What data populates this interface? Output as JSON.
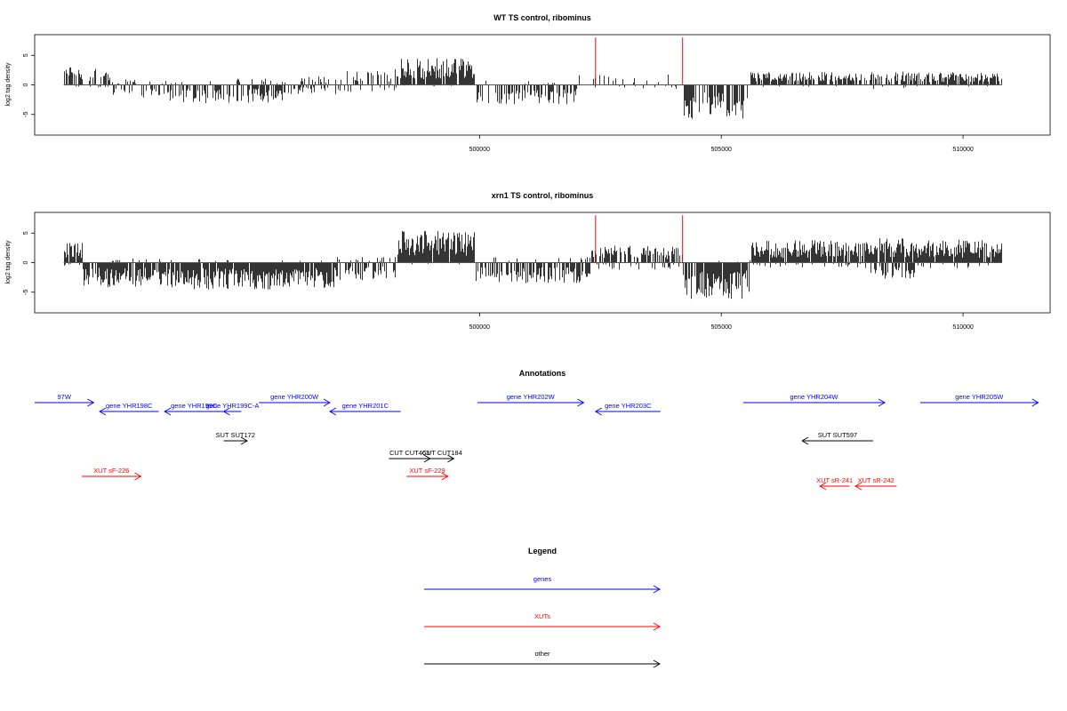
{
  "chart_data": [
    {
      "type": "bar",
      "title": "WT TS control, ribominus",
      "xlabel": "",
      "ylabel": "log2 tag density",
      "xlim": [
        490800,
        511800
      ],
      "ylim": [
        -8.5,
        8.5
      ],
      "x_ticks": [
        500000,
        505000,
        510000
      ],
      "x_tick_labels": [
        "500000",
        "505000",
        "510000"
      ],
      "y_ticks": [
        5,
        0,
        -5
      ],
      "y_tick_labels": [
        "5",
        "0",
        "-5"
      ],
      "grid": false,
      "markers": [
        {
          "x": 502400,
          "y": 8,
          "color": "#ff0000"
        },
        {
          "x": 504200,
          "y": 8,
          "color": "#ff0000"
        }
      ],
      "regions": [
        {
          "from": 491400,
          "to": 492400,
          "plus": 2.5,
          "minus": 0.3,
          "pdens": 0.6,
          "mdens": 0.15
        },
        {
          "from": 492400,
          "to": 493600,
          "plus": 0.8,
          "minus": 1.8,
          "pdens": 0.2,
          "mdens": 0.35
        },
        {
          "from": 493600,
          "to": 496200,
          "plus": 1.0,
          "minus": 2.6,
          "pdens": 0.1,
          "mdens": 0.5
        },
        {
          "from": 496200,
          "to": 497200,
          "plus": 1.2,
          "minus": 1.5,
          "pdens": 0.25,
          "mdens": 0.3
        },
        {
          "from": 497200,
          "to": 498300,
          "plus": 2.2,
          "minus": 1.0,
          "pdens": 0.4,
          "mdens": 0.2
        },
        {
          "from": 498300,
          "to": 499900,
          "plus": 3.8,
          "minus": 0.2,
          "pdens": 0.9,
          "mdens": 0.05
        },
        {
          "from": 499900,
          "to": 502000,
          "plus": 0.6,
          "minus": 2.8,
          "pdens": 0.1,
          "mdens": 0.5
        },
        {
          "from": 502000,
          "to": 504200,
          "plus": 1.5,
          "minus": 0.6,
          "pdens": 0.2,
          "mdens": 0.1
        },
        {
          "from": 504200,
          "to": 505600,
          "plus": 0.3,
          "minus": 4.8,
          "pdens": 0.05,
          "mdens": 0.75
        },
        {
          "from": 505600,
          "to": 508000,
          "plus": 1.8,
          "minus": 0.3,
          "pdens": 0.7,
          "mdens": 0.05
        },
        {
          "from": 508000,
          "to": 508800,
          "plus": 2.0,
          "minus": 1.0,
          "pdens": 0.6,
          "mdens": 0.2
        },
        {
          "from": 508800,
          "to": 510800,
          "plus": 1.8,
          "minus": 0.3,
          "pdens": 0.75,
          "mdens": 0.05
        }
      ]
    },
    {
      "type": "bar",
      "title": "xrn1 TS control, ribominus",
      "xlabel": "",
      "ylabel": "log2 tag density",
      "xlim": [
        490800,
        511800
      ],
      "ylim": [
        -8.5,
        8.5
      ],
      "x_ticks": [
        500000,
        505000,
        510000
      ],
      "x_tick_labels": [
        "500000",
        "505000",
        "510000"
      ],
      "y_ticks": [
        5,
        0,
        -5
      ],
      "y_tick_labels": [
        "5",
        "0",
        "-5"
      ],
      "grid": false,
      "markers": [
        {
          "x": 502400,
          "y": 8,
          "color": "#ff0000"
        },
        {
          "x": 504200,
          "y": 8,
          "color": "#ff0000"
        }
      ],
      "regions": [
        {
          "from": 491400,
          "to": 491800,
          "plus": 2.8,
          "minus": 0.5,
          "pdens": 0.9,
          "mdens": 0.2
        },
        {
          "from": 491800,
          "to": 494000,
          "plus": 0.6,
          "minus": 3.5,
          "pdens": 0.1,
          "mdens": 0.85
        },
        {
          "from": 494000,
          "to": 497000,
          "plus": 0.5,
          "minus": 3.8,
          "pdens": 0.05,
          "mdens": 0.95
        },
        {
          "from": 497000,
          "to": 498300,
          "plus": 1.0,
          "minus": 2.5,
          "pdens": 0.25,
          "mdens": 0.5
        },
        {
          "from": 498300,
          "to": 499900,
          "plus": 4.5,
          "minus": 0.3,
          "pdens": 0.95,
          "mdens": 0.05
        },
        {
          "from": 499900,
          "to": 502300,
          "plus": 0.8,
          "minus": 3.0,
          "pdens": 0.1,
          "mdens": 0.6
        },
        {
          "from": 502300,
          "to": 504200,
          "plus": 2.4,
          "minus": 1.0,
          "pdens": 0.6,
          "mdens": 0.2
        },
        {
          "from": 504200,
          "to": 505600,
          "plus": 0.5,
          "minus": 5.2,
          "pdens": 0.05,
          "mdens": 0.85
        },
        {
          "from": 505600,
          "to": 508000,
          "plus": 3.2,
          "minus": 0.8,
          "pdens": 0.95,
          "mdens": 0.15
        },
        {
          "from": 508000,
          "to": 509000,
          "plus": 3.5,
          "minus": 2.5,
          "pdens": 0.9,
          "mdens": 0.5
        },
        {
          "from": 509000,
          "to": 510800,
          "plus": 3.2,
          "minus": 0.8,
          "pdens": 0.95,
          "mdens": 0.15
        }
      ]
    }
  ],
  "annotations": {
    "title": "Annotations",
    "colors": {
      "gene": "#0000ff",
      "xut": "#ff0000",
      "other": "#000000"
    },
    "features": [
      {
        "label": "97W",
        "start": 490800,
        "end": 491800,
        "strand": "+",
        "kind": "gene",
        "row": 0
      },
      {
        "label": "gene YHR198C",
        "start": 491900,
        "end": 492900,
        "strand": "-",
        "kind": "gene",
        "row": 1
      },
      {
        "label": "gene YHR199C",
        "start": 493000,
        "end": 494000,
        "strand": "-",
        "kind": "gene",
        "row": 1
      },
      {
        "label": "gene YHR199C-A",
        "start": 494000,
        "end": 494300,
        "strand": "-",
        "kind": "gene",
        "row": 1
      },
      {
        "label": "gene YHR200W",
        "start": 494600,
        "end": 495800,
        "strand": "+",
        "kind": "gene",
        "row": 0
      },
      {
        "label": "gene YHR201C",
        "start": 495800,
        "end": 497000,
        "strand": "-",
        "kind": "gene",
        "row": 1
      },
      {
        "label": "gene YHR202W",
        "start": 498300,
        "end": 500100,
        "strand": "+",
        "kind": "gene",
        "row": 0
      },
      {
        "label": "gene YHR203C",
        "start": 500300,
        "end": 501400,
        "strand": "-",
        "kind": "gene",
        "row": 1
      },
      {
        "label": "gene YHR204W",
        "start": 502800,
        "end": 505200,
        "strand": "+",
        "kind": "gene",
        "row": 0
      },
      {
        "label": "gene YHR205W",
        "start": 505800,
        "end": 507800,
        "strand": "+",
        "kind": "gene",
        "row": 0
      },
      {
        "label": "SUT SUT172",
        "start": 494000,
        "end": 494400,
        "strand": "+",
        "kind": "other",
        "row": 2
      },
      {
        "label": "CUT CUT463",
        "start": 496800,
        "end": 497500,
        "strand": "+",
        "kind": "other",
        "row": 3
      },
      {
        "label": "CUT CUT184",
        "start": 497500,
        "end": 497900,
        "strand": "+",
        "kind": "other",
        "row": 3
      },
      {
        "label": "SUT SUT597",
        "start": 503800,
        "end": 505000,
        "strand": "-",
        "kind": "other",
        "row": 2
      },
      {
        "label": "XUT sF-226",
        "start": 491600,
        "end": 492600,
        "strand": "+",
        "kind": "xut",
        "row": 4
      },
      {
        "label": "XUT sF-229",
        "start": 497100,
        "end": 497800,
        "strand": "+",
        "kind": "xut",
        "row": 4
      },
      {
        "label": "XUT sR-241",
        "start": 504100,
        "end": 504600,
        "strand": "-",
        "kind": "xut",
        "row": 5
      },
      {
        "label": "XUT sR-242",
        "start": 504700,
        "end": 505400,
        "strand": "-",
        "kind": "xut",
        "row": 5
      }
    ]
  },
  "legend": {
    "title": "Legend",
    "items": [
      {
        "label": "genes",
        "color": "#0000ff"
      },
      {
        "label": "XUTs",
        "color": "#ff0000"
      },
      {
        "label": "other",
        "color": "#000000"
      }
    ]
  }
}
